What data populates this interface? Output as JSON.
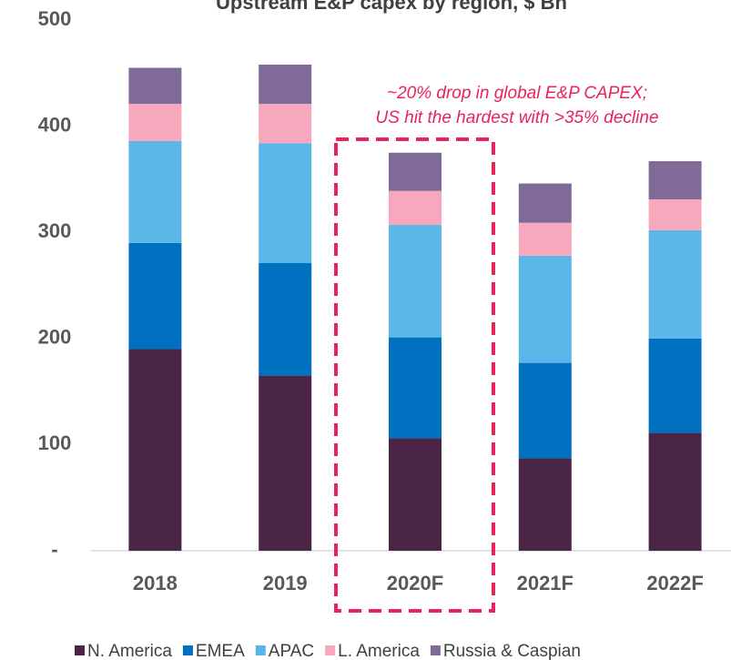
{
  "chart_data": {
    "type": "stacked_bar",
    "title": "Upstream E&P capex by region, $ Bn",
    "annotation": [
      "~20% drop in global E&P CAPEX;",
      "US hit the hardest with >35% decline"
    ],
    "categories": [
      "2018",
      "2019",
      "2020F",
      "2021F",
      "2022F"
    ],
    "series": [
      {
        "name": "N. America",
        "color": "#4a2545",
        "values": [
          190,
          165,
          106,
          87,
          111
        ]
      },
      {
        "name": "EMEA",
        "color": "#0070c0",
        "values": [
          100,
          106,
          95,
          90,
          89
        ]
      },
      {
        "name": "APAC",
        "color": "#5bb6e8",
        "values": [
          96,
          113,
          106,
          101,
          102
        ]
      },
      {
        "name": "L. America",
        "color": "#f7a8bc",
        "values": [
          35,
          37,
          32,
          31,
          29
        ]
      },
      {
        "name": "Russia & Caspian",
        "color": "#7f6a9a",
        "values": [
          34,
          37,
          36,
          37,
          36
        ]
      }
    ],
    "ylim": [
      0,
      500
    ],
    "yticks": [
      {
        "value": 0,
        "label": "-"
      },
      100,
      200,
      300,
      400,
      500
    ],
    "legend": "bottom"
  }
}
